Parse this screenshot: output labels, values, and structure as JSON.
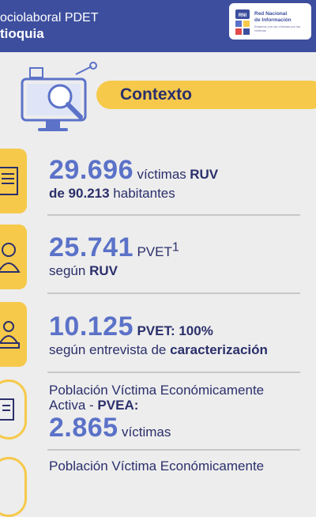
{
  "header": {
    "title_line1": "ociolaboral PDET",
    "title_line2": "tioquia",
    "logo_name_line1": "Red Nacional",
    "logo_name_line2": "de Información",
    "logo_tagline": "Estamos con las víctimas por las víctimas"
  },
  "section": {
    "title": "Contexto"
  },
  "stats": [
    {
      "number": "29.696",
      "text_a": "víctimas",
      "text_b": "RUV",
      "line2_b1": "de 90.213",
      "line2_a": "habitantes"
    },
    {
      "number": "25.741",
      "text_a": "PVET",
      "sup": "1",
      "line2_a": "según",
      "line2_b": "RUV"
    },
    {
      "number": "10.125",
      "text_b": "PVET: 100%",
      "line2_a": "según entrevista de",
      "line2_b": "caracterización"
    },
    {
      "text_a": "Población Víctima Económicamente",
      "line2_a": "Activa -",
      "line2_b": "PVEA:",
      "number": "2.865",
      "unit": "víctimas"
    },
    {
      "text_a": "Población Víctima Económicamente"
    }
  ]
}
